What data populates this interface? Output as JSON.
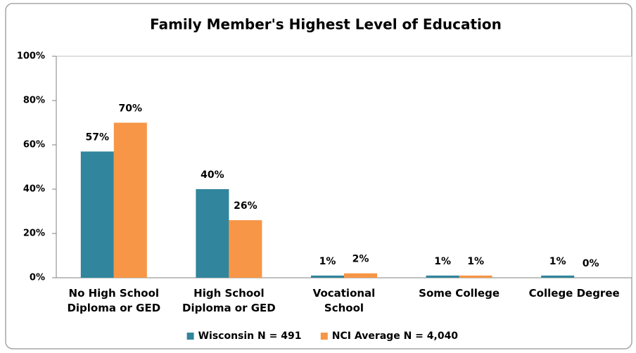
{
  "chart_data": {
    "type": "bar",
    "title": "Family Member's Highest Level of Education",
    "categories": [
      "No High School\nDiploma or GED",
      "High School\nDiploma or GED",
      "Vocational\nSchool",
      "Some College",
      "College Degree"
    ],
    "series": [
      {
        "name": "Wisconsin N = 491",
        "color": "#31859c",
        "values": [
          57,
          40,
          1,
          1,
          1
        ],
        "value_labels": [
          "57%",
          "40%",
          "1%",
          "1%",
          "1%"
        ]
      },
      {
        "name": "NCI Average N = 4,040",
        "color": "#f79646",
        "values": [
          70,
          26,
          2,
          1,
          0
        ],
        "value_labels": [
          "70%",
          "26%",
          "2%",
          "1%",
          "0%"
        ]
      }
    ],
    "ylim": [
      0,
      100
    ],
    "yticks": [
      {
        "value": 0,
        "label": "0%"
      },
      {
        "value": 20,
        "label": "20%"
      },
      {
        "value": 40,
        "label": "40%"
      },
      {
        "value": 60,
        "label": "60%"
      },
      {
        "value": 80,
        "label": "80%"
      },
      {
        "value": 100,
        "label": "100%"
      }
    ],
    "grid": false,
    "legend": "bottom"
  }
}
